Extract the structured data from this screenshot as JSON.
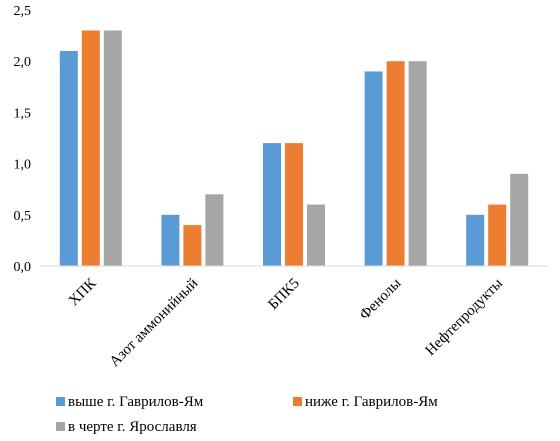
{
  "chart_data": {
    "type": "bar",
    "title": "",
    "xlabel": "",
    "ylabel": "",
    "categories": [
      "ХПК",
      "Азот аммонийный",
      "БПК5",
      "Фенолы",
      "Нефтепродукты"
    ],
    "series": [
      {
        "name": "выше г. Гаврилов-Ям",
        "color": "#5B9BD5",
        "values": [
          2.1,
          0.5,
          1.2,
          1.9,
          0.5
        ]
      },
      {
        "name": "ниже г. Гаврилов-Ям",
        "color": "#ED7D31",
        "values": [
          2.3,
          0.4,
          1.2,
          2.0,
          0.6
        ]
      },
      {
        "name": "в черте г. Ярославля",
        "color": "#A5A5A5",
        "values": [
          2.3,
          0.7,
          0.6,
          2.0,
          0.9
        ]
      }
    ],
    "ylim": [
      0,
      2.5
    ],
    "yticks": [
      "0,0",
      "0,5",
      "1,0",
      "1,5",
      "2,0",
      "2,5"
    ],
    "grid": false,
    "legend_position": "bottom"
  }
}
